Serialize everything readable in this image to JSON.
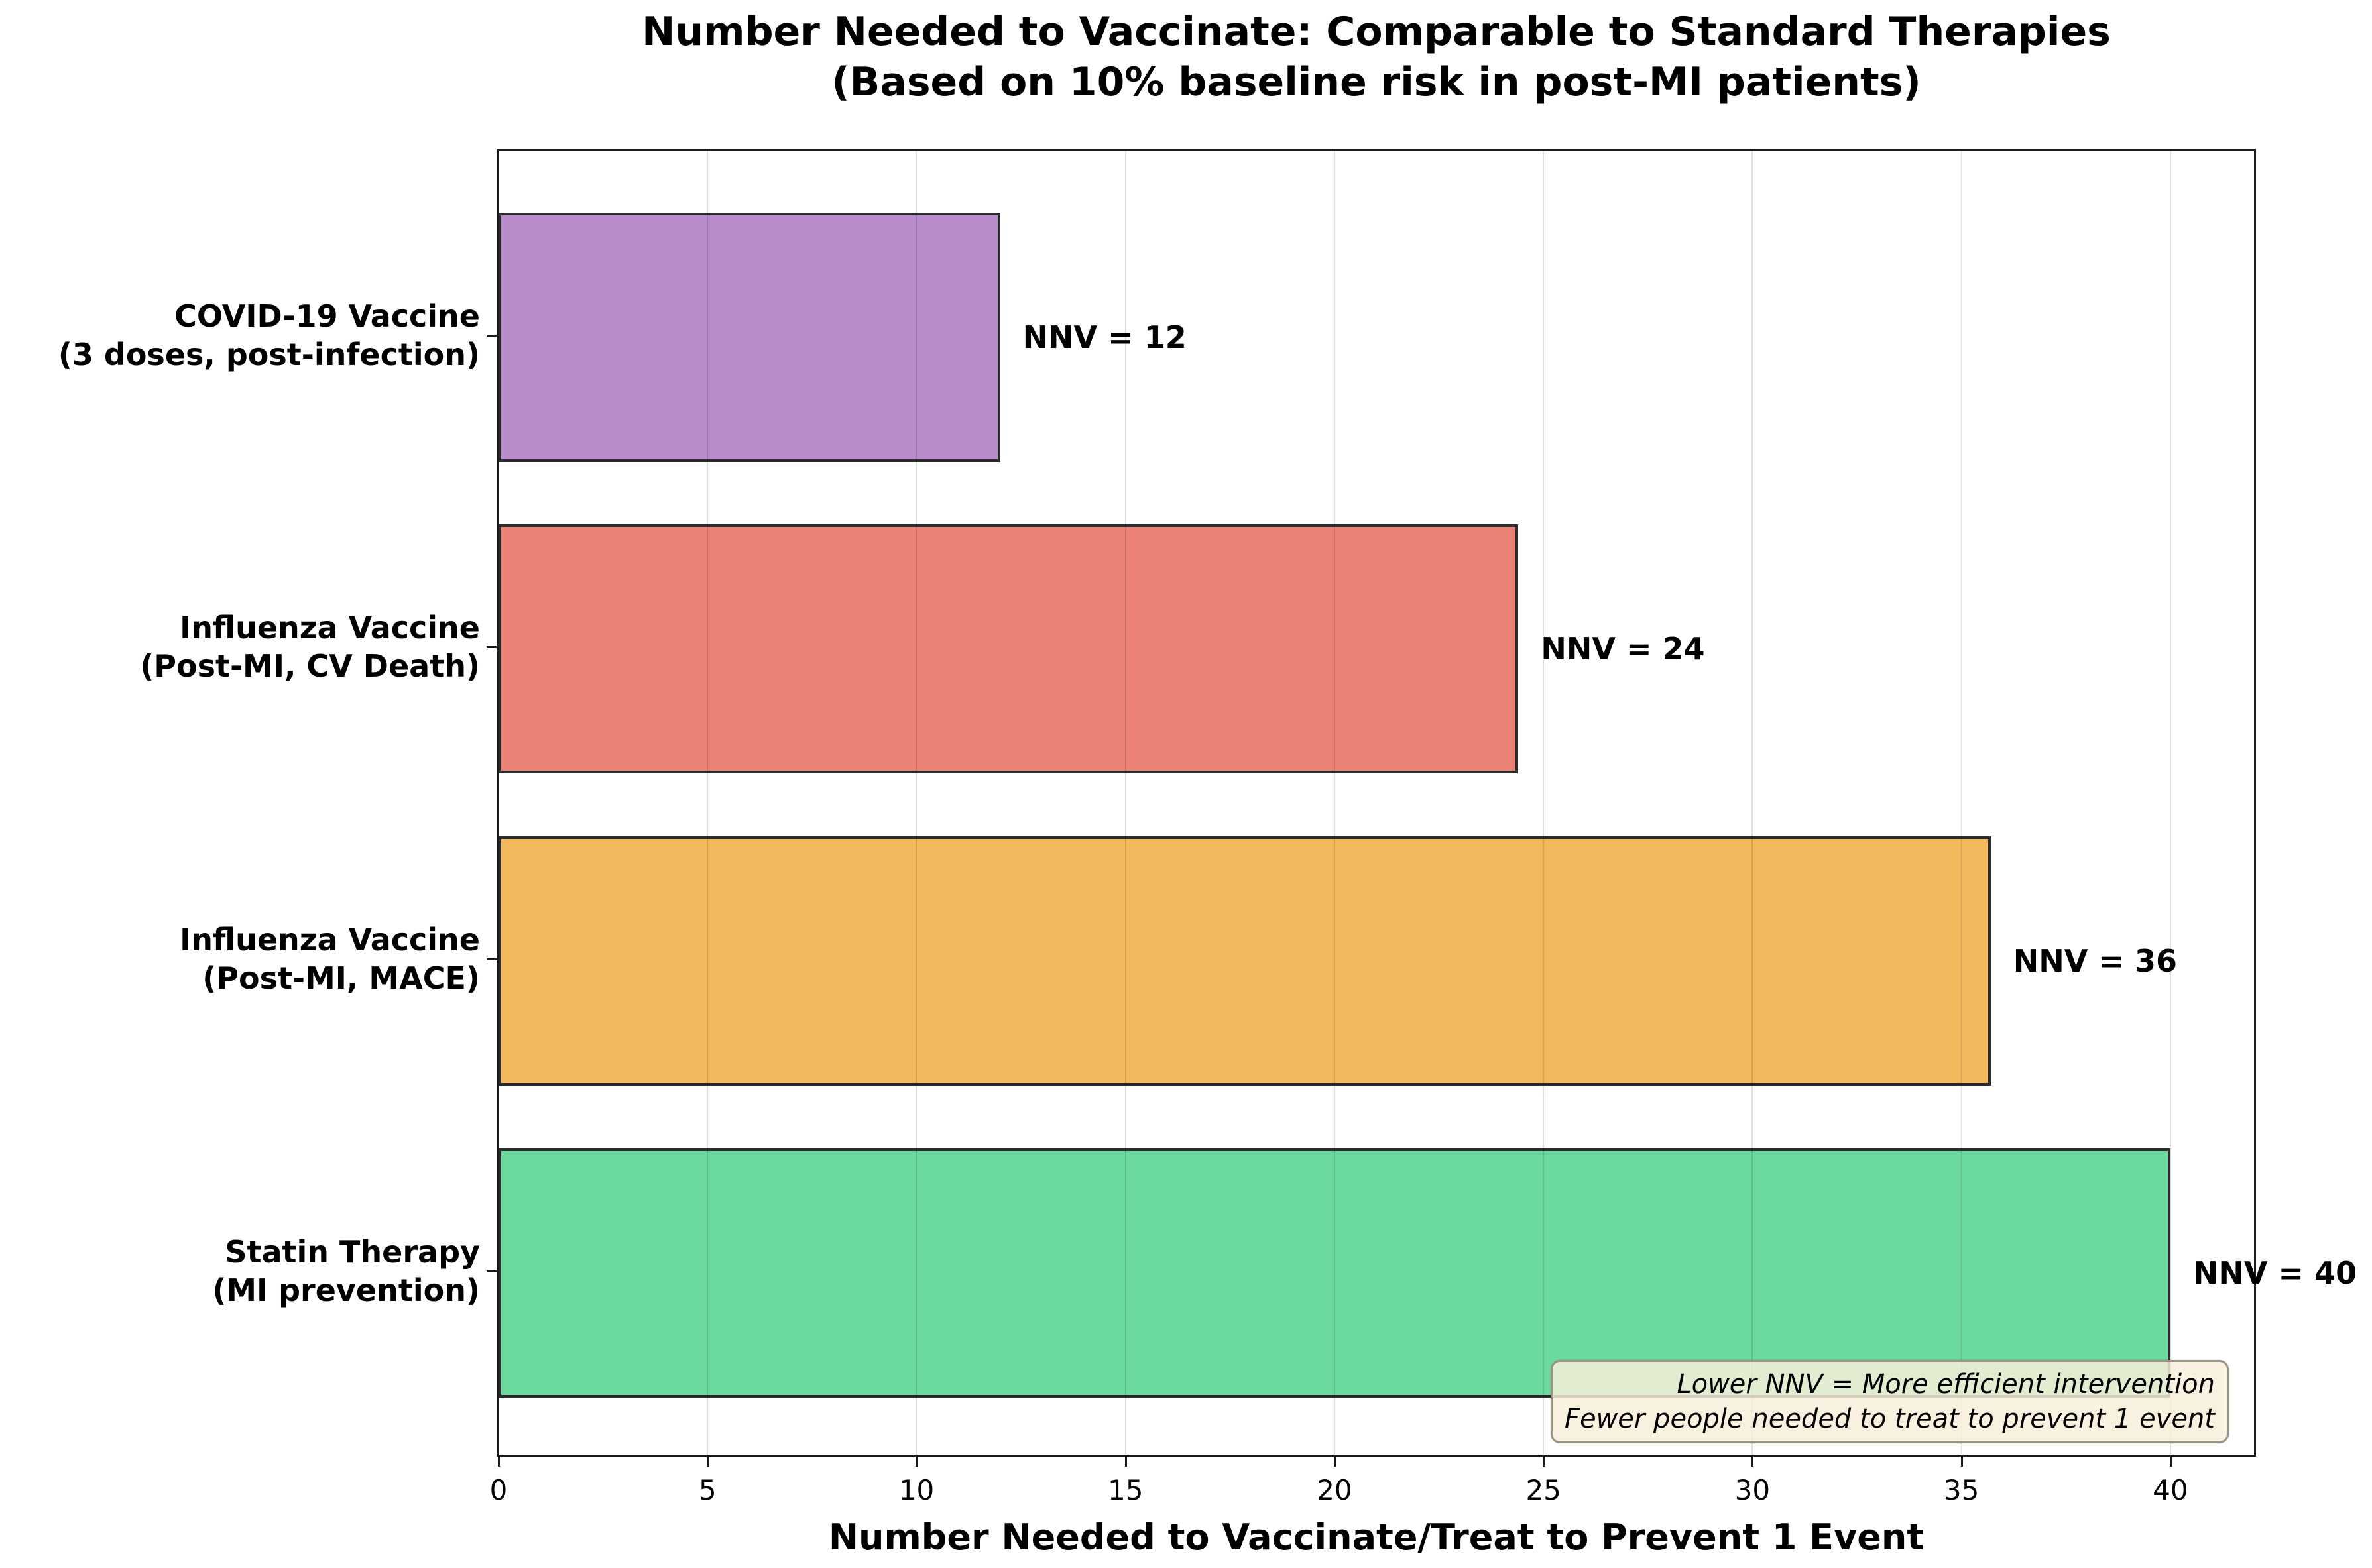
{
  "title": {
    "line1": "Number Needed to Vaccinate: Comparable to Standard Therapies",
    "line2": "(Based on 10% baseline risk in post-MI patients)"
  },
  "chart_data": {
    "type": "bar",
    "orientation": "horizontal",
    "title": "Number Needed to Vaccinate: Comparable to Standard Therapies (Based on 10% baseline risk in post-MI patients)",
    "categories": [
      "COVID-19 Vaccine (3 doses, post-infection)",
      "Influenza Vaccine (Post-MI, CV Death)",
      "Influenza Vaccine (Post-MI, MACE)",
      "Statin Therapy (MI prevention)"
    ],
    "category_lines": [
      [
        "COVID-19 Vaccine",
        "(3 doses, post-infection)"
      ],
      [
        "Influenza Vaccine",
        "(Post-MI, CV Death)"
      ],
      [
        "Influenza Vaccine",
        "(Post-MI, MACE)"
      ],
      [
        "Statin Therapy",
        "(MI prevention)"
      ]
    ],
    "values": [
      12,
      24.4,
      35.7,
      40
    ],
    "bar_labels": [
      "NNV = 12",
      "NNV = 24",
      "NNV = 36",
      "NNV = 40"
    ],
    "colors": [
      "#b88bcb",
      "#ec8175",
      "#f4b95c",
      "#6cd99e"
    ],
    "bar_edge_color": "#2b2b2b",
    "xlabel": "Number Needed to Vaccinate/Treat to Prevent 1 Event",
    "xlim": [
      0,
      42
    ],
    "xticks": [
      0,
      5,
      10,
      15,
      20,
      25,
      30,
      35,
      40
    ],
    "grid": true,
    "legend": "none",
    "annotation": {
      "line1": "Lower NNV = More efficient intervention",
      "line2": "Fewer people needed to treat to prevent 1 event",
      "bg_color": "#f7eed9",
      "border_color": "#9a9383"
    }
  }
}
